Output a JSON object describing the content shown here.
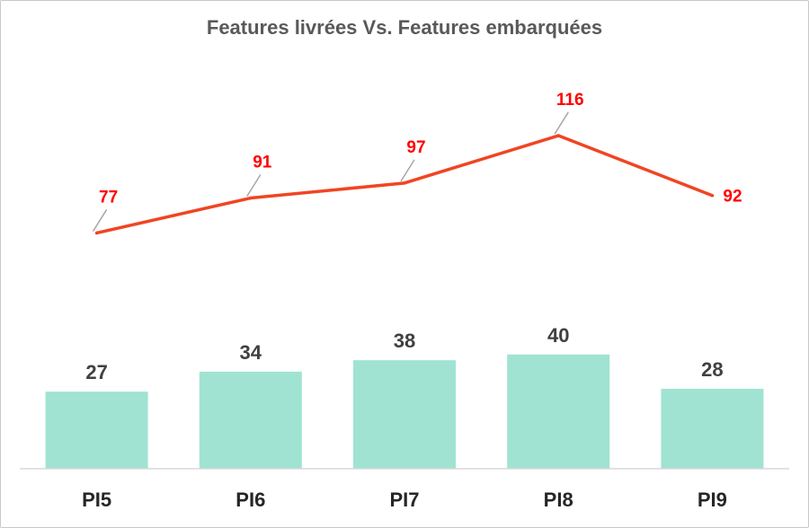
{
  "chart_data": {
    "type": "bar",
    "title": "Features livrées Vs. Features embarquées",
    "categories": [
      "PI5",
      "PI6",
      "PI7",
      "PI8",
      "PI9"
    ],
    "series": [
      {
        "type": "bar",
        "values": [
          27,
          34,
          38,
          40,
          28
        ],
        "color": "#a0e3d2"
      },
      {
        "type": "line",
        "values": [
          77,
          91,
          97,
          116,
          92
        ],
        "color": "#f04523",
        "label_color": "#ff0000"
      }
    ],
    "legend": "none",
    "grid": false
  }
}
